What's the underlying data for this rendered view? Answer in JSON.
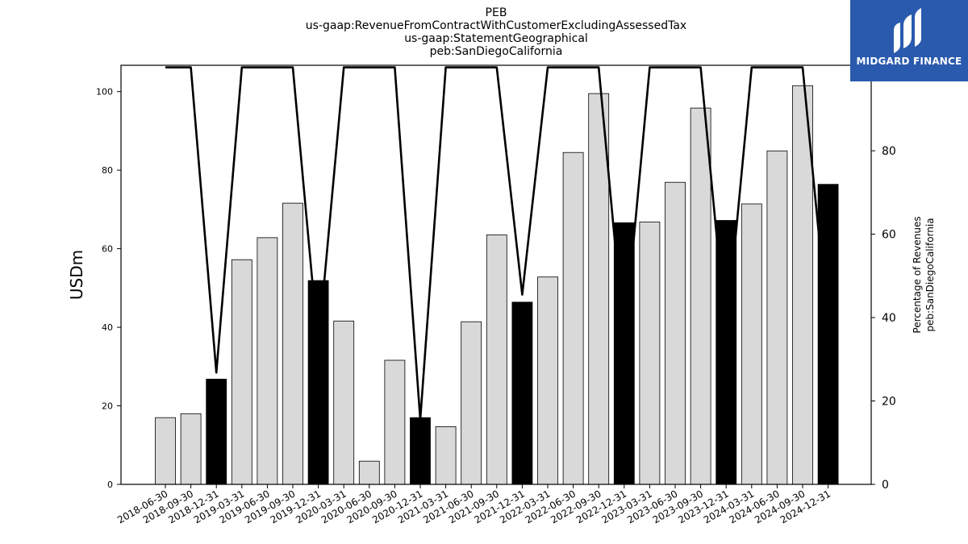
{
  "title_lines": [
    "PEB",
    "us-gaap:RevenueFromContractWithCustomerExcludingAssessedTax",
    "us-gaap:StatementGeographical",
    "peb:SanDiegoCalifornia"
  ],
  "logo": {
    "text": "MIDGARD FINANCE",
    "bg_color": "#2a5aad"
  },
  "colors": {
    "bar_normal": "#d9d9d9",
    "bar_q4": "#000000",
    "line": "#000000",
    "bar_edge": "#000000"
  },
  "chart_data": {
    "type": "bar",
    "title": "PEB\nus-gaap:RevenueFromContractWithCustomerExcludingAssessedTax\nus-gaap:StatementGeographical\npeb:SanDiegoCalifornia",
    "ylabel": "USDm",
    "y2label": "Percentage of Revenues\npeb:SanDiegoCalifornia",
    "ylim": [
      0,
      106.7
    ],
    "y2lim": [
      0,
      100.5
    ],
    "yticks": [
      0,
      20,
      40,
      60,
      80,
      100
    ],
    "y2ticks": [
      0,
      20,
      40,
      60,
      80,
      100
    ],
    "categories": [
      "2018-06-30",
      "2018-09-30",
      "2018-12-31",
      "2019-03-31",
      "2019-06-30",
      "2019-09-30",
      "2019-12-31",
      "2020-03-31",
      "2020-06-30",
      "2020-09-30",
      "2020-12-31",
      "2021-03-31",
      "2021-06-30",
      "2021-09-30",
      "2021-12-31",
      "2022-03-31",
      "2022-06-30",
      "2022-09-30",
      "2022-12-31",
      "2023-03-31",
      "2023-06-30",
      "2023-09-30",
      "2023-12-31",
      "2024-03-31",
      "2024-06-30",
      "2024-09-30",
      "2024-12-31"
    ],
    "series": [
      {
        "type": "bar",
        "axis": "left",
        "values": [
          17.0,
          18.0,
          26.8,
          57.2,
          62.8,
          71.6,
          51.9,
          41.6,
          5.9,
          31.6,
          17.0,
          14.7,
          41.4,
          63.5,
          46.4,
          52.8,
          84.5,
          99.5,
          66.6,
          66.8,
          76.9,
          95.8,
          67.2,
          71.4,
          84.9,
          101.5,
          76.4
        ]
      },
      {
        "type": "line",
        "axis": "right",
        "values": [
          100,
          100,
          26.8,
          100,
          100,
          100,
          33.0,
          100,
          100,
          100,
          15.5,
          100,
          100,
          100,
          45.5,
          100,
          100,
          100,
          34.0,
          100,
          100,
          100,
          35.5,
          100,
          100,
          100,
          37.0
        ]
      }
    ],
    "highlight_categories": [
      "2018-12-31",
      "2019-12-31",
      "2020-12-31",
      "2021-12-31",
      "2022-12-31",
      "2023-12-31",
      "2024-12-31"
    ],
    "grid": false,
    "legend": "none"
  }
}
